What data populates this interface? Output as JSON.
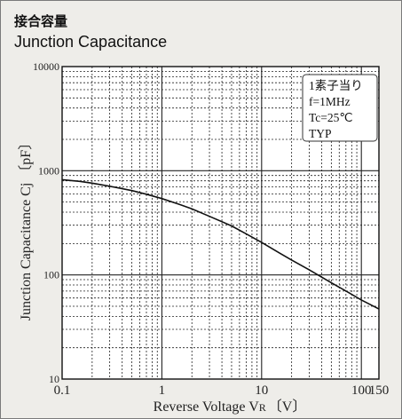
{
  "titles": {
    "japanese": "接合容量",
    "english": "Junction Capacitance"
  },
  "chart_data": {
    "type": "line",
    "title": "Junction Capacitance",
    "xlabel": "Reverse Voltage  V",
    "xlabel_subscript": "R",
    "xlabel_unit": "〔V〕",
    "ylabel": "Junction Capacitance  Cj 〔pF〕",
    "x_scale": "log",
    "y_scale": "log",
    "xlim": [
      0.1,
      150
    ],
    "ylim": [
      10,
      10000
    ],
    "x_ticks": [
      {
        "value": 0.1,
        "label": "0.1"
      },
      {
        "value": 1,
        "label": "1"
      },
      {
        "value": 10,
        "label": "10"
      },
      {
        "value": 100,
        "label": "100"
      },
      {
        "value": 150,
        "label": "150"
      }
    ],
    "y_ticks": [
      {
        "value": 10,
        "label": "10"
      },
      {
        "value": 100,
        "label": "100"
      },
      {
        "value": 1000,
        "label": "1000"
      },
      {
        "value": 10000,
        "label": "10000"
      }
    ],
    "grid": true,
    "legend_position": "top-right",
    "annotation_lines": [
      "1素子当り",
      "f=1MHz",
      "Tc=25℃",
      "TYP"
    ],
    "series": [
      {
        "x": [
          0.1,
          0.15,
          0.2,
          0.3,
          0.5,
          0.7,
          1,
          1.5,
          2,
          3,
          5,
          7,
          10,
          15,
          20,
          30,
          50,
          70,
          100,
          150
        ],
        "y": [
          820,
          790,
          760,
          710,
          645,
          595,
          540,
          475,
          430,
          365,
          295,
          248,
          205,
          163,
          139,
          112,
          84,
          70,
          57.5,
          47
        ]
      }
    ],
    "colors": {
      "line": "#111111",
      "grid": "#222222",
      "background": "#eeede9"
    }
  }
}
